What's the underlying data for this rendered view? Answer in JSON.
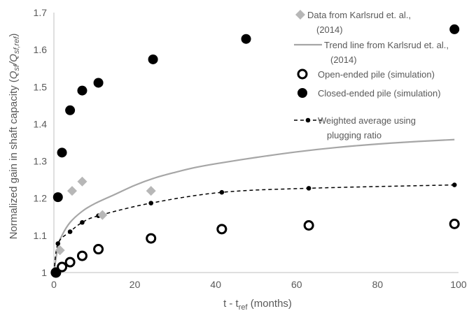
{
  "chart_data": {
    "type": "scatter",
    "xlabel": {
      "main": "t - t",
      "sub": "ref",
      "rest": " (months)"
    },
    "ylabel": {
      "pre": "Normalized gain in shaft capacity (",
      "q1": "Q",
      "s1": "sf",
      "slash": "/",
      "q2": "Q",
      "s2": "sf,ref",
      "post": ")"
    },
    "xlim": [
      0,
      100
    ],
    "ylim": [
      1.0,
      1.7
    ],
    "xticks": [
      0,
      20,
      40,
      60,
      80,
      100
    ],
    "yticks": [
      1.0,
      1.1,
      1.2,
      1.3,
      1.4,
      1.5,
      1.6,
      1.7
    ],
    "xtick_labels": [
      "0",
      "20",
      "40",
      "60",
      "80",
      "100"
    ],
    "ytick_labels": [
      "1",
      "1.1",
      "1.2",
      "1.3",
      "1.4",
      "1.5",
      "1.6",
      "1.7"
    ],
    "grid": false,
    "legend_placement": "top-right",
    "series": [
      {
        "name_lines": [
          "Data from Karlsrud et. al.,",
          "(2014)"
        ],
        "kind": "diamond",
        "color": "#b7b7b7",
        "points": [
          [
            0.5,
            1.0
          ],
          [
            1.5,
            1.06
          ],
          [
            4.5,
            1.22
          ],
          [
            7,
            1.245
          ],
          [
            12,
            1.155
          ],
          [
            24,
            1.22
          ]
        ]
      },
      {
        "name_lines": [
          "Trend line from Karlsrud et. al.,",
          "(2014)"
        ],
        "kind": "line",
        "color": "#a6a6a6",
        "points": [
          [
            0,
            1.0
          ],
          [
            1,
            1.07
          ],
          [
            2,
            1.1
          ],
          [
            4,
            1.135
          ],
          [
            7,
            1.165
          ],
          [
            10,
            1.185
          ],
          [
            15,
            1.21
          ],
          [
            20,
            1.235
          ],
          [
            25,
            1.255
          ],
          [
            30,
            1.27
          ],
          [
            35,
            1.283
          ],
          [
            40,
            1.293
          ],
          [
            50,
            1.31
          ],
          [
            60,
            1.325
          ],
          [
            70,
            1.337
          ],
          [
            80,
            1.346
          ],
          [
            90,
            1.353
          ],
          [
            99,
            1.358
          ]
        ]
      },
      {
        "name_lines": [
          "Open-ended pile (simulation)"
        ],
        "kind": "open-circle",
        "color": "#000000",
        "points": [
          [
            0.5,
            1.0
          ],
          [
            2,
            1.015
          ],
          [
            4,
            1.028
          ],
          [
            7,
            1.045
          ],
          [
            11,
            1.063
          ],
          [
            24,
            1.092
          ],
          [
            41.5,
            1.117
          ],
          [
            63,
            1.127
          ],
          [
            99,
            1.131
          ]
        ]
      },
      {
        "name_lines": [
          "Closed-ended pile (simulation)"
        ],
        "kind": "filled-circle",
        "color": "#000000",
        "points": [
          [
            0.5,
            1.0
          ],
          [
            1,
            1.203
          ],
          [
            2,
            1.323
          ],
          [
            4,
            1.437
          ],
          [
            7,
            1.49
          ],
          [
            11,
            1.511
          ],
          [
            24.5,
            1.574
          ],
          [
            47.5,
            1.629
          ],
          [
            99,
            1.655
          ]
        ]
      },
      {
        "name_lines": [
          "Weighted average using",
          "plugging ratio"
        ],
        "kind": "dashed-line",
        "color": "#000000",
        "points": [
          [
            0,
            1.0
          ],
          [
            1,
            1.078
          ],
          [
            4,
            1.11
          ],
          [
            7,
            1.135
          ],
          [
            11,
            1.153
          ],
          [
            24,
            1.187
          ],
          [
            41.5,
            1.216
          ],
          [
            63,
            1.227
          ],
          [
            99,
            1.236
          ]
        ]
      }
    ]
  }
}
